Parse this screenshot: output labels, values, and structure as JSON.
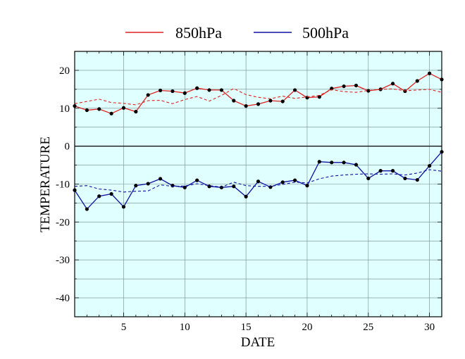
{
  "chart_data": {
    "type": "line",
    "xlabel": "DATE",
    "ylabel": "TEMPERATURE",
    "xlim": [
      1,
      31
    ],
    "ylim": [
      -45,
      25
    ],
    "xticks": [
      5,
      10,
      15,
      20,
      25,
      30
    ],
    "yticks": [
      20,
      10,
      0,
      -10,
      -20,
      -30,
      -40
    ],
    "grid": true,
    "legend_position": "top-center",
    "plot_background": "#e0ffff",
    "x": [
      1,
      2,
      3,
      4,
      5,
      6,
      7,
      8,
      9,
      10,
      11,
      12,
      13,
      14,
      15,
      16,
      17,
      18,
      19,
      20,
      21,
      22,
      23,
      24,
      25,
      26,
      27,
      28,
      29,
      30,
      31
    ],
    "series": [
      {
        "name": "850hPa",
        "color": "#e02020",
        "style": "solid-with-markers",
        "values": [
          10.6,
          9.5,
          9.8,
          8.6,
          10.1,
          9.1,
          13.5,
          14.7,
          14.5,
          14.0,
          15.3,
          14.8,
          14.8,
          12.0,
          10.6,
          11.1,
          12.0,
          11.8,
          14.8,
          12.8,
          13.0,
          15.2,
          15.8,
          16.0,
          14.6,
          15.0,
          16.5,
          14.5,
          17.2,
          19.2,
          17.6
        ]
      },
      {
        "name": "",
        "color": "#e02020",
        "style": "dashed",
        "values": [
          11.2,
          11.8,
          12.4,
          11.5,
          11.3,
          10.9,
          12.0,
          12.1,
          11.2,
          12.3,
          13.1,
          11.9,
          13.4,
          15.2,
          13.6,
          12.9,
          12.5,
          13.2,
          12.6,
          13.0,
          13.4,
          14.9,
          14.4,
          14.2,
          14.7,
          15.0,
          15.1,
          14.6,
          14.8,
          15.0,
          14.2
        ]
      },
      {
        "name": "500hPa",
        "color": "#1010a0",
        "style": "solid-with-markers",
        "values": [
          -11.6,
          -16.6,
          -13.2,
          -12.6,
          -16.0,
          -10.4,
          -9.9,
          -8.6,
          -10.4,
          -10.9,
          -9.0,
          -10.6,
          -10.9,
          -10.6,
          -13.3,
          -9.3,
          -10.8,
          -9.5,
          -9.0,
          -10.4,
          -4.1,
          -4.3,
          -4.3,
          -4.9,
          -8.5,
          -6.5,
          -6.5,
          -8.5,
          -8.9,
          -5.2,
          -1.5
        ]
      },
      {
        "name": "",
        "color": "#1010a0",
        "style": "dashed",
        "values": [
          -10.6,
          -10.4,
          -11.3,
          -11.6,
          -12.1,
          -11.9,
          -11.8,
          -10.2,
          -10.6,
          -10.5,
          -9.9,
          -10.4,
          -10.8,
          -9.5,
          -10.4,
          -10.6,
          -10.6,
          -10.1,
          -9.5,
          -9.7,
          -8.6,
          -7.9,
          -7.6,
          -7.4,
          -7.3,
          -7.4,
          -7.3,
          -7.6,
          -7.1,
          -6.2,
          -6.6
        ]
      }
    ]
  }
}
